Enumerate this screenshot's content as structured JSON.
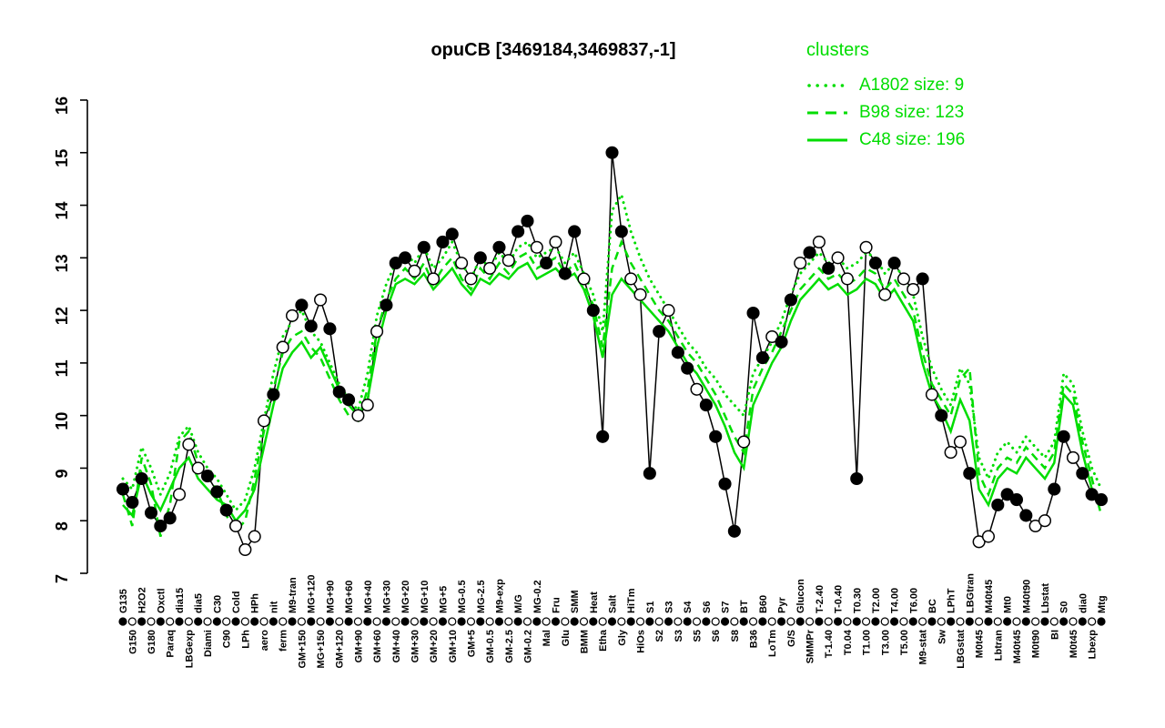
{
  "title": "opuCB [3469184,3469837,-1]",
  "legend": {
    "heading": "clusters",
    "entries": [
      {
        "label": "A1802 size: 9",
        "style": "dotted"
      },
      {
        "label": "B98 size: 123",
        "style": "dashed"
      },
      {
        "label": "C48 size: 196",
        "style": "solid"
      }
    ]
  },
  "colors": {
    "cluster_green": "#00dd00",
    "gene_black": "#000000",
    "background": "#ffffff"
  },
  "chart_data": {
    "type": "line",
    "title": "opuCB [3469184,3469837,-1]",
    "xlabel": "",
    "ylabel": "",
    "ylim": [
      7,
      16
    ],
    "yticks": [
      7,
      8,
      9,
      10,
      11,
      12,
      13,
      14,
      15,
      16
    ],
    "grid": false,
    "legend_position": "top-right",
    "categories": [
      "G135",
      "G150",
      "H2O2",
      "G180",
      "Oxctl",
      "Paraq",
      "dia15",
      "LBGexp",
      "dia5",
      "Diami",
      "C30",
      "C90",
      "Cold",
      "LPh",
      "HPh",
      "aero",
      "nit",
      "ferm",
      "M9-tran",
      "GM+150",
      "MG+120",
      "MG+150",
      "MG+90",
      "GM+120",
      "MG+60",
      "GM+90",
      "MG+40",
      "GM+60",
      "MG+30",
      "GM+40",
      "MG+20",
      "GM+30",
      "MG+10",
      "GM+20",
      "MG+5",
      "GM+10",
      "MG-0.5",
      "GM+5",
      "MG-2.5",
      "GM-0.5",
      "M9-exp",
      "GM-2.5",
      "M/G",
      "GM-0.2",
      "MG-0.2",
      "Mal",
      "Fru",
      "Glu",
      "SMM",
      "BMM",
      "Heat",
      "Etha",
      "Salt",
      "Gly",
      "HiTm",
      "HiOs",
      "S1",
      "S2",
      "S3",
      "S3",
      "S4",
      "S5",
      "S6",
      "S6",
      "S7",
      "S8",
      "BT",
      "B36",
      "B60",
      "LoTm",
      "Pyr",
      "G/S",
      "Glucon",
      "SMMPr",
      "T-2.40",
      "T-1.40",
      "T-0.40",
      "T0.04",
      "T0.30",
      "T1.00",
      "T2.00",
      "T3.00",
      "T4.00",
      "T5.00",
      "T6.00",
      "M9-stat",
      "BC",
      "Sw",
      "LPhT",
      "LBGstat",
      "LBGtran",
      "M0t45",
      "M40t45",
      "Lbtran",
      "Mt0",
      "M40t45",
      "M40t90",
      "M0t90",
      "Lbstat",
      "BI",
      "S0",
      "M0t45",
      "dia0",
      "Lbexp",
      "Mtg"
    ],
    "series": [
      {
        "name": "opuCB",
        "role": "gene",
        "color": "#000000",
        "dash": "solid",
        "marker": "circle",
        "marker_filled": [
          1,
          1,
          1,
          1,
          1,
          1,
          0,
          0,
          0,
          1,
          1,
          1,
          0,
          0,
          0,
          0,
          1,
          0,
          0,
          1,
          1,
          0,
          1,
          1,
          1,
          0,
          0,
          0,
          1,
          1,
          1,
          0,
          1,
          0,
          1,
          1,
          0,
          0,
          1,
          0,
          1,
          0,
          1,
          1,
          0,
          1,
          0,
          1,
          1,
          0,
          1,
          1,
          1,
          1,
          0,
          0,
          1,
          1,
          0,
          1,
          1,
          0,
          1,
          1,
          1,
          1,
          0,
          1,
          1,
          0,
          1,
          1,
          0,
          1,
          0,
          1,
          0,
          0,
          1,
          0,
          1,
          0,
          1,
          0,
          0,
          1,
          0,
          1,
          0,
          0,
          1,
          0,
          0,
          1,
          1,
          1,
          1,
          0,
          0,
          1,
          1,
          0,
          1,
          1,
          1
        ],
        "values": [
          8.6,
          8.35,
          8.8,
          8.15,
          7.9,
          8.05,
          8.5,
          9.45,
          9.0,
          8.85,
          8.55,
          8.2,
          7.9,
          7.45,
          7.7,
          9.9,
          10.4,
          11.3,
          11.9,
          12.1,
          11.7,
          12.2,
          11.65,
          10.45,
          10.3,
          10.0,
          10.2,
          11.6,
          12.1,
          12.9,
          13.0,
          12.75,
          13.2,
          12.6,
          13.3,
          13.45,
          12.9,
          12.6,
          13.0,
          12.8,
          13.2,
          12.95,
          13.5,
          13.7,
          13.2,
          12.9,
          13.3,
          12.7,
          13.5,
          12.6,
          12.0,
          9.6,
          15.0,
          13.5,
          12.6,
          12.3,
          8.9,
          11.6,
          12.0,
          11.2,
          10.9,
          10.5,
          10.2,
          9.6,
          8.7,
          7.8,
          9.5,
          11.95,
          11.1,
          11.5,
          11.4,
          12.2,
          12.9,
          13.1,
          13.3,
          12.8,
          13.0,
          12.6,
          8.8,
          13.2,
          12.9,
          12.3,
          12.9,
          12.6,
          12.4,
          12.6,
          10.4,
          10.0,
          9.3,
          9.5,
          8.9,
          7.6,
          7.7,
          8.3,
          8.5,
          8.4,
          8.1,
          7.9,
          8.0,
          8.6,
          9.6,
          9.2,
          8.9,
          8.5,
          8.4
        ]
      },
      {
        "name": "A1802 size: 9",
        "role": "cluster",
        "color": "#00dd00",
        "dash": "dotted",
        "values": [
          8.8,
          8.6,
          9.4,
          9.0,
          8.5,
          8.9,
          9.6,
          9.8,
          9.3,
          9.0,
          8.8,
          8.5,
          8.2,
          8.4,
          9.0,
          9.9,
          10.8,
          11.5,
          11.8,
          12.0,
          11.6,
          11.4,
          11.0,
          10.6,
          10.3,
          10.1,
          10.8,
          11.9,
          12.5,
          12.9,
          13.1,
          12.9,
          13.2,
          12.8,
          13.0,
          13.3,
          12.9,
          12.6,
          13.0,
          12.8,
          13.1,
          12.9,
          13.2,
          13.3,
          13.0,
          13.1,
          13.2,
          12.9,
          13.1,
          12.7,
          12.3,
          11.6,
          13.9,
          14.2,
          13.5,
          13.0,
          12.6,
          12.3,
          12.0,
          11.7,
          11.4,
          11.2,
          10.9,
          10.7,
          10.4,
          10.2,
          10.0,
          10.8,
          11.1,
          11.4,
          11.8,
          12.3,
          12.7,
          12.9,
          13.1,
          12.9,
          13.0,
          12.8,
          12.9,
          13.1,
          13.0,
          12.7,
          12.9,
          12.6,
          12.3,
          11.5,
          10.9,
          10.5,
          10.2,
          10.9,
          10.6,
          9.2,
          8.8,
          9.3,
          9.5,
          9.3,
          9.6,
          9.4,
          9.2,
          9.5,
          10.8,
          10.6,
          9.7,
          9.0,
          8.6
        ]
      },
      {
        "name": "B98 size: 123",
        "role": "cluster",
        "color": "#00dd00",
        "dash": "dashed",
        "values": [
          8.5,
          7.9,
          9.2,
          8.7,
          7.7,
          8.3,
          9.5,
          9.7,
          9.1,
          8.8,
          8.6,
          8.1,
          7.8,
          8.0,
          8.8,
          9.7,
          10.5,
          11.2,
          11.5,
          11.6,
          11.3,
          11.1,
          10.7,
          10.3,
          10.0,
          9.9,
          10.5,
          11.6,
          12.2,
          12.6,
          12.8,
          12.6,
          12.9,
          12.5,
          12.8,
          13.0,
          12.6,
          12.4,
          12.8,
          12.6,
          12.9,
          12.7,
          13.0,
          13.1,
          12.8,
          12.9,
          13.0,
          12.7,
          12.9,
          12.5,
          12.1,
          11.3,
          12.8,
          13.3,
          12.9,
          12.6,
          12.3,
          12.0,
          11.8,
          11.5,
          11.2,
          11.0,
          10.7,
          10.4,
          10.0,
          9.6,
          9.3,
          10.5,
          10.9,
          11.2,
          11.6,
          12.0,
          12.4,
          12.6,
          12.8,
          12.6,
          12.7,
          12.5,
          12.6,
          12.8,
          12.7,
          12.4,
          12.6,
          12.3,
          12.0,
          11.2,
          10.6,
          10.3,
          10.0,
          10.7,
          10.9,
          8.9,
          8.5,
          9.0,
          9.2,
          9.1,
          9.4,
          9.2,
          9.0,
          9.3,
          10.6,
          10.4,
          9.5,
          8.8,
          8.1
        ]
      },
      {
        "name": "C48 size: 196",
        "role": "cluster",
        "color": "#00dd00",
        "dash": "solid",
        "values": [
          8.3,
          8.1,
          8.9,
          8.5,
          8.2,
          8.6,
          9.0,
          9.2,
          8.8,
          8.6,
          8.4,
          8.3,
          8.0,
          8.2,
          8.6,
          9.4,
          10.2,
          10.9,
          11.2,
          11.4,
          11.1,
          11.3,
          10.9,
          10.5,
          10.2,
          10.0,
          10.3,
          11.3,
          12.0,
          12.5,
          12.6,
          12.5,
          12.7,
          12.4,
          12.6,
          12.8,
          12.5,
          12.3,
          12.6,
          12.5,
          12.7,
          12.6,
          12.8,
          12.9,
          12.6,
          12.7,
          12.8,
          12.6,
          12.7,
          12.4,
          11.9,
          11.1,
          12.3,
          12.6,
          12.4,
          12.2,
          12.0,
          11.8,
          11.6,
          11.3,
          11.0,
          10.8,
          10.5,
          10.2,
          9.8,
          9.3,
          9.0,
          10.2,
          10.6,
          11.0,
          11.3,
          11.8,
          12.2,
          12.4,
          12.6,
          12.4,
          12.5,
          12.3,
          12.4,
          12.6,
          12.5,
          12.2,
          12.4,
          12.1,
          11.8,
          11.0,
          10.4,
          10.1,
          9.7,
          10.3,
          9.9,
          8.6,
          8.3,
          8.8,
          9.0,
          8.9,
          9.2,
          9.0,
          8.8,
          9.1,
          10.4,
          10.2,
          9.3,
          8.6,
          8.3
        ]
      }
    ]
  }
}
